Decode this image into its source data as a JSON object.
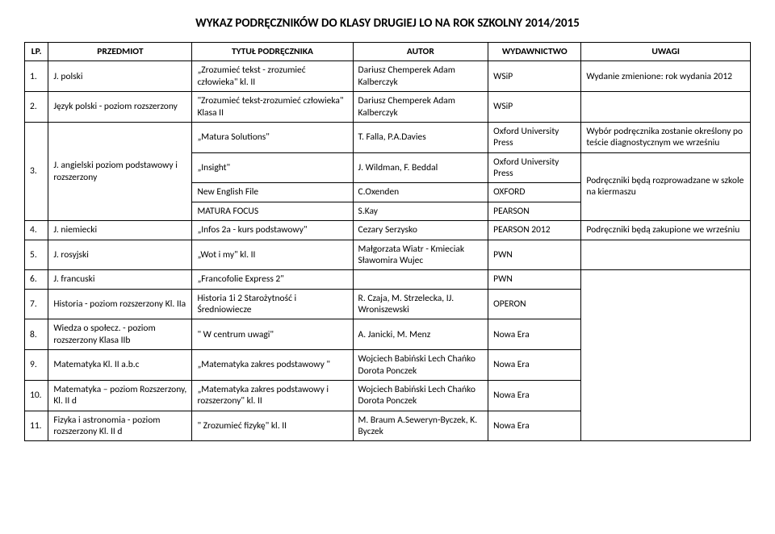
{
  "title": "WYKAZ PODRĘCZNIKÓW DO KLASY DRUGIEJ LO NA ROK SZKOLNY 2014/2015",
  "headers": {
    "lp": "LP.",
    "subject": "PRZEDMIOT",
    "book_title": "TYTUŁ PODRĘCZNIKA",
    "author": "AUTOR",
    "publisher": "WYDAWNICTWO",
    "notes": "UWAGI"
  },
  "rows": {
    "r1": {
      "lp": "1.",
      "subject": "J. polski",
      "book_title": "„Zrozumieć tekst - zrozumieć człowieka\" kl. II",
      "author": "Dariusz Chemperek Adam Kalberczyk",
      "publisher": "WSiP",
      "notes": "Wydanie zmienione: rok wydania 2012"
    },
    "r2": {
      "lp": "2.",
      "subject": "Język polski - poziom rozszerzony",
      "book_title": "\"Zrozumieć tekst-zrozumieć człowieka\" Klasa II",
      "author": "Dariusz Chemperek Adam Kalberczyk",
      "publisher": "WSiP",
      "notes": ""
    },
    "r3": {
      "lp": "3.",
      "subject": "J. angielski poziom podstawowy i rozszerzony",
      "a": {
        "book_title": "„Matura Solutions\"",
        "author": "T. Falla, P.A.Davies",
        "publisher": "Oxford University Press",
        "notes": "Wybór podręcznika zostanie określony po teście diagnostycznym we wrześniu"
      },
      "b": {
        "book_title": "„Insight\"",
        "author": "J. Wildman, F. Beddal",
        "publisher": "Oxford University Press",
        "notes": "Podręczniki będą rozprowadzane w szkole na kiermaszu"
      },
      "c": {
        "book_title": "New English File",
        "author": "C.Oxenden",
        "publisher": "OXFORD",
        "notes": ""
      },
      "d": {
        "book_title": "MATURA FOCUS",
        "author": "S.Kay",
        "publisher": "PEARSON",
        "notes": ""
      }
    },
    "r4": {
      "lp": "4.",
      "subject": "J. niemiecki",
      "book_title": "„Infos 2a - kurs podstawowy\"",
      "author": "Cezary Serzysko",
      "publisher": "PEARSON 2012",
      "notes": "Podręczniki będą zakupione we wrześniu"
    },
    "r5": {
      "lp": "5.",
      "subject": "J. rosyjski",
      "book_title": "„Wot i my\" kl. II",
      "author": "Małgorzata Wiatr - Kmieciak Sławomira Wujec",
      "publisher": "PWN",
      "notes": ""
    },
    "r6": {
      "lp": "6.",
      "subject": "J. francuski",
      "book_title": "„Francofolie Express 2\"",
      "author": "",
      "publisher": "PWN",
      "notes": ""
    },
    "r7": {
      "lp": "7.",
      "subject": "Historia - poziom rozszerzony Kl. IIa",
      "book_title": "Historia 1i 2 Starożytność i Średniowiecze",
      "author": "R. Czaja, M. Strzelecka, IJ. Wroniszewski",
      "publisher": "OPERON",
      "notes": ""
    },
    "r8": {
      "lp": "8.",
      "subject": "Wiedza o społecz. - poziom rozszerzony Klasa IIb",
      "book_title": "\" W centrum uwagi\"",
      "author": "A. Janicki, M. Menz",
      "publisher": "Nowa Era",
      "notes": ""
    },
    "r9": {
      "lp": "9.",
      "subject": " Matematyka Kl. II a.b.c",
      "book_title": "„Matematyka zakres podstawowy \"",
      "author": "Wojciech Babiński Lech Chańko Dorota Ponczek",
      "publisher": "Nowa Era",
      "notes": ""
    },
    "r10": {
      "lp": "10.",
      "subject": "Matematyka – poziom Rozszerzony, Kl. II d",
      "book_title": "„Matematyka zakres podstawowy i rozszerzony\" kl. II",
      "author": "Wojciech Babiński Lech Chańko Dorota Ponczek",
      "publisher": "Nowa Era",
      "notes": ""
    },
    "r11": {
      "lp": "11.",
      "subject": "Fizyka i astronomia - poziom rozszerzony Kl. II d",
      "book_title": "\" Zrozumieć fizykę\" kl. II",
      "author": "M. Braum A.Seweryn-Byczek, K. Byczek",
      "publisher": "Nowa Era",
      "notes": ""
    }
  }
}
